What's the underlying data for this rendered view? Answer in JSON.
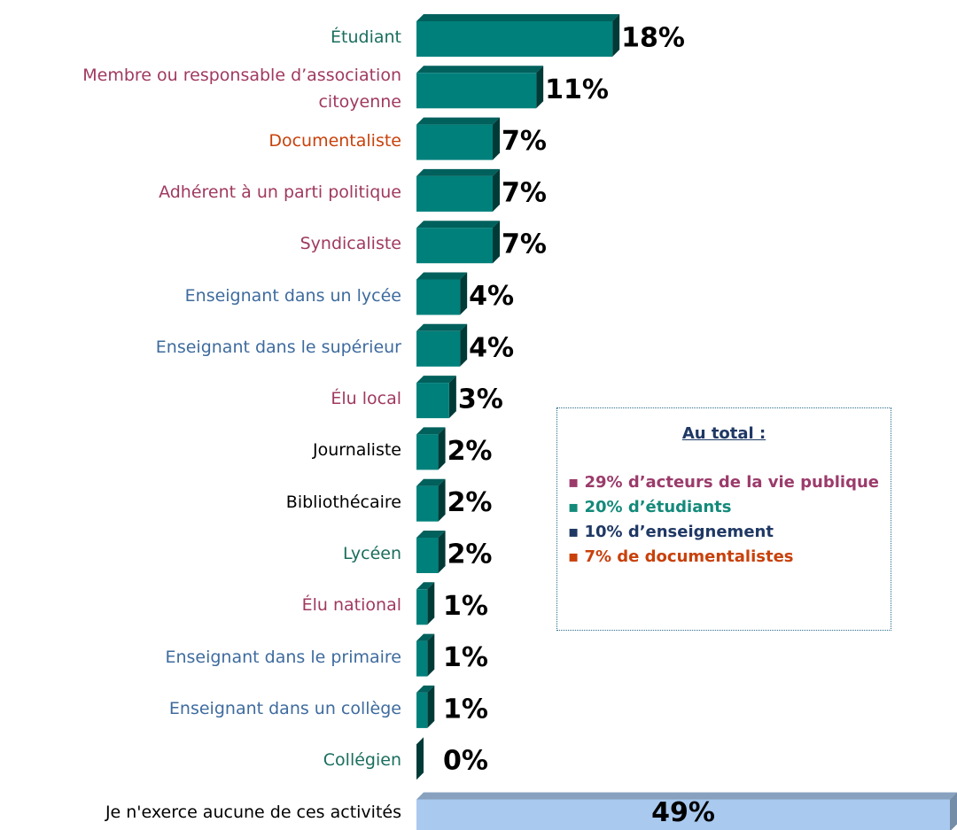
{
  "chart_data": {
    "type": "bar",
    "orientation": "horizontal",
    "categories": [
      "Étudiant",
      "Membre ou responsable d’association citoyenne",
      "Documentaliste",
      "Adhérent à un parti politique",
      "Syndicaliste",
      "Enseignant dans un lycée",
      "Enseignant dans le supérieur",
      "Élu local",
      "Journaliste",
      "Bibliothécaire",
      "Lycéen",
      "Élu national",
      "Enseignant dans le primaire",
      "Enseignant dans un collège",
      "Collégien",
      "Je n'exerce aucune de ces activités"
    ],
    "values": [
      18,
      11,
      7,
      7,
      7,
      4,
      4,
      3,
      2,
      2,
      2,
      1,
      1,
      1,
      0,
      49
    ],
    "value_labels": [
      "18%",
      "11%",
      "7%",
      "7%",
      "7%",
      "4%",
      "4%",
      "3%",
      "2%",
      "2%",
      "2%",
      "1%",
      "1%",
      "1%",
      "0%",
      "49%"
    ],
    "bar_colors": [
      "#00807b",
      "#00807b",
      "#00807b",
      "#00807b",
      "#00807b",
      "#00807b",
      "#00807b",
      "#00807b",
      "#00807b",
      "#00807b",
      "#00807b",
      "#00807b",
      "#00807b",
      "#00807b",
      "#00807b",
      "#a9c9ef"
    ],
    "label_colors": [
      "#1a6e5e",
      "#a0395f",
      "#c8410b",
      "#a0395f",
      "#a0395f",
      "#3e6b9e",
      "#3e6b9e",
      "#a0395f",
      "#000000",
      "#000000",
      "#1a6e5e",
      "#a0395f",
      "#3e6b9e",
      "#3e6b9e",
      "#1a6e5e",
      "#000000"
    ],
    "xlim": [
      0,
      49
    ],
    "annotation": {
      "title": "Au total :",
      "items": [
        {
          "text": "▪ 29% d’acteurs de la vie publique",
          "color": "#9b3b6b"
        },
        {
          "text": "▪  20% d’étudiants",
          "color": "#138a7a"
        },
        {
          "text": "▪ 10% d’enseignement",
          "color": "#1f3864"
        },
        {
          "text": "▪  7%  de documentalistes",
          "color": "#c8410b"
        }
      ]
    }
  }
}
